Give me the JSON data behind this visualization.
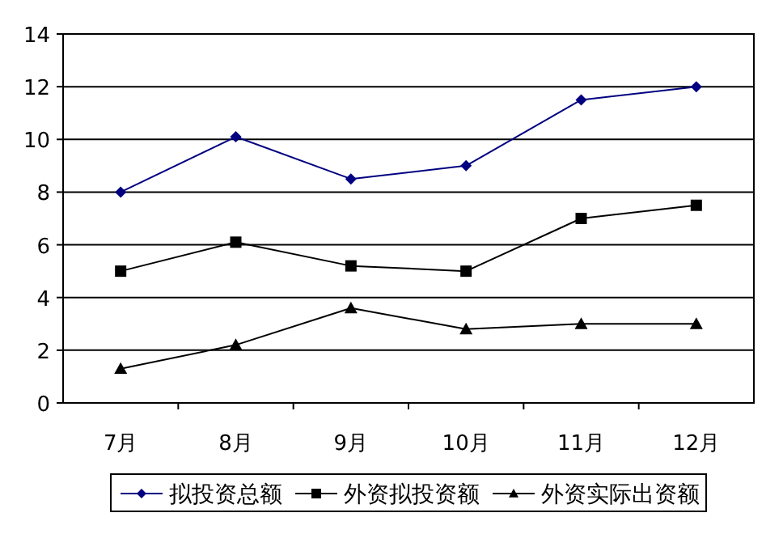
{
  "chart_data": {
    "type": "line",
    "categories": [
      "7月",
      "8月",
      "9月",
      "10月",
      "11月",
      "12月"
    ],
    "series": [
      {
        "name": "拟投资总额",
        "color": "#000080",
        "marker": "diamond",
        "values": [
          8,
          10.1,
          8.5,
          9,
          11.5,
          12
        ]
      },
      {
        "name": "外资拟投资额",
        "color": "#000000",
        "marker": "square",
        "values": [
          5,
          6.1,
          5.2,
          5,
          7,
          7.5
        ]
      },
      {
        "name": "外资实际出资额",
        "color": "#000000",
        "marker": "triangle",
        "values": [
          1.3,
          2.2,
          3.6,
          2.8,
          3,
          3
        ]
      }
    ],
    "ylim": [
      0,
      14
    ],
    "yticks": [
      0,
      2,
      4,
      6,
      8,
      10,
      12,
      14
    ],
    "grid": "y",
    "legend": "bottom"
  }
}
